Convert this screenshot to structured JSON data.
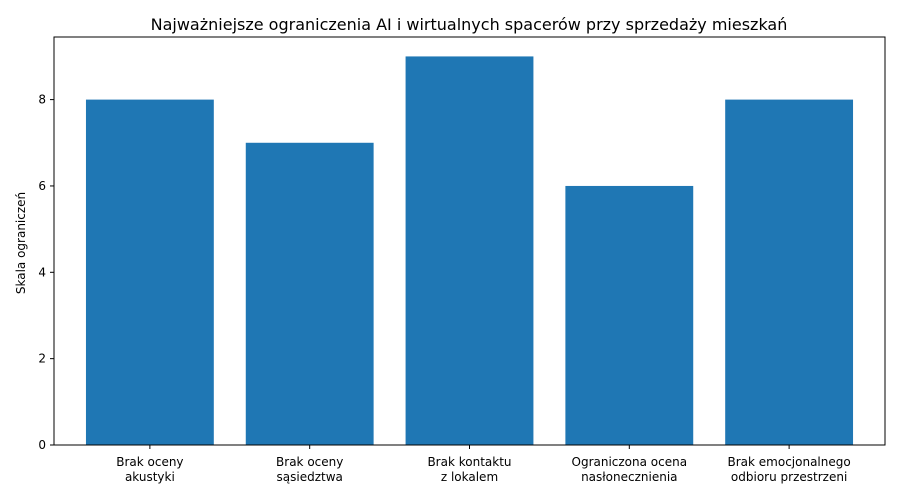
{
  "chart_data": {
    "type": "bar",
    "title": "Najważniejsze ograniczenia AI i wirtualnych spacerów przy sprzedaży mieszkań",
    "xlabel": "",
    "ylabel": "Skala ograniczeń",
    "categories": [
      [
        "Brak oceny",
        "akustyki"
      ],
      [
        "Brak oceny",
        "sąsiedztwa"
      ],
      [
        "Brak kontaktu",
        "z lokalem"
      ],
      [
        "Ograniczona ocena",
        "nasłonecznienia"
      ],
      [
        "Brak emocjonalnego",
        "odbioru przestrzeni"
      ]
    ],
    "values": [
      8,
      7,
      9,
      6,
      8
    ],
    "ylim": [
      0,
      9.45
    ],
    "yticks": [
      0,
      2,
      4,
      6,
      8
    ],
    "bar_color": "#1f77b4",
    "grid": false,
    "legend": "none"
  }
}
